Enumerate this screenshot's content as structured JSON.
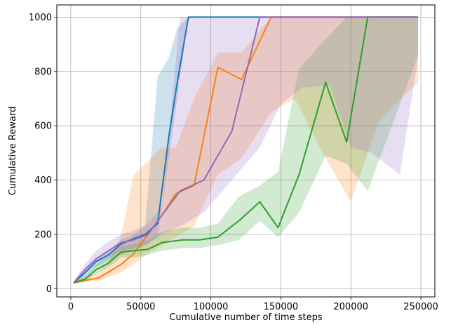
{
  "chart_data": {
    "type": "line",
    "title": "",
    "xlabel": "Cumulative number of time steps",
    "ylabel": "Cumulative Reward",
    "xlim": [
      -10000,
      260000
    ],
    "ylim": [
      -30,
      1045
    ],
    "xticks": [
      0,
      50000,
      100000,
      150000,
      200000,
      250000
    ],
    "xtick_labels": [
      "0",
      "50000",
      "100000",
      "150000",
      "200000",
      "250000"
    ],
    "yticks": [
      0,
      200,
      400,
      600,
      800,
      1000
    ],
    "ytick_labels": [
      "0",
      "200",
      "400",
      "600",
      "800",
      "1000"
    ],
    "grid": true,
    "legend": "none",
    "series": [
      {
        "color": "#1f77b4",
        "x": [
          2000,
          10000,
          18000,
          27000,
          36000,
          45000,
          53000,
          62000,
          70000,
          76000,
          84000,
          100000,
          150000,
          200000,
          248000
        ],
        "y": [
          22,
          58,
          100,
          125,
          165,
          185,
          200,
          240,
          560,
          760,
          1000,
          1000,
          1000,
          1000,
          1000
        ],
        "band_upper": [
          24,
          65,
          110,
          140,
          180,
          200,
          230,
          780,
          850,
          960,
          1000,
          1000,
          1000,
          1000,
          1000
        ],
        "band_lower": [
          20,
          40,
          80,
          105,
          125,
          140,
          160,
          190,
          480,
          700,
          1000,
          1000,
          1000,
          1000,
          1000
        ]
      },
      {
        "color": "#ff7f0e",
        "x": [
          2000,
          10000,
          20000,
          28000,
          36000,
          45000,
          55000,
          65000,
          75000,
          88000,
          105000,
          122000,
          143000,
          160000,
          180000,
          200000,
          220000,
          248000
        ],
        "y": [
          22,
          30,
          40,
          65,
          90,
          130,
          200,
          270,
          350,
          380,
          815,
          770,
          1000,
          1000,
          1000,
          1000,
          1000,
          1000
        ],
        "band_upper": [
          25,
          40,
          60,
          110,
          200,
          420,
          470,
          520,
          520,
          700,
          870,
          870,
          1000,
          1000,
          1000,
          1000,
          1000,
          1000
        ],
        "band_lower": [
          20,
          25,
          30,
          45,
          60,
          90,
          130,
          160,
          190,
          230,
          420,
          480,
          650,
          700,
          500,
          320,
          620,
          760
        ]
      },
      {
        "color": "#2ca02c",
        "x": [
          2000,
          10000,
          18000,
          27000,
          36000,
          45000,
          55000,
          65000,
          80000,
          92000,
          105000,
          120000,
          135000,
          148000,
          163000,
          182000,
          197000,
          212000,
          248000
        ],
        "y": [
          22,
          35,
          70,
          95,
          135,
          140,
          145,
          170,
          180,
          180,
          190,
          250,
          320,
          225,
          420,
          760,
          540,
          1000,
          1000
        ],
        "band_upper": [
          25,
          45,
          90,
          120,
          155,
          165,
          180,
          210,
          225,
          225,
          240,
          340,
          380,
          430,
          810,
          920,
          1000,
          1000,
          1000
        ],
        "band_lower": [
          20,
          25,
          55,
          80,
          115,
          115,
          125,
          140,
          150,
          150,
          160,
          180,
          250,
          190,
          280,
          490,
          460,
          360,
          860
        ]
      },
      {
        "color": "#9467bd",
        "x": [
          2000,
          10000,
          18000,
          27000,
          36000,
          45000,
          55000,
          65000,
          78000,
          95000,
          115000,
          135000,
          150000,
          165000,
          185000,
          200000,
          215000,
          235000,
          248000
        ],
        "y": [
          22,
          70,
          110,
          140,
          170,
          180,
          200,
          270,
          360,
          400,
          580,
          1000,
          1000,
          1000,
          1000,
          1000,
          1000,
          1000,
          1000
        ],
        "band_upper": [
          25,
          90,
          140,
          175,
          200,
          215,
          240,
          300,
          1000,
          1000,
          1000,
          1000,
          1000,
          1000,
          1000,
          1000,
          1000,
          1000,
          1000
        ],
        "band_lower": [
          20,
          55,
          95,
          115,
          140,
          150,
          165,
          200,
          230,
          280,
          400,
          520,
          680,
          740,
          750,
          520,
          500,
          420,
          850
        ]
      }
    ]
  }
}
